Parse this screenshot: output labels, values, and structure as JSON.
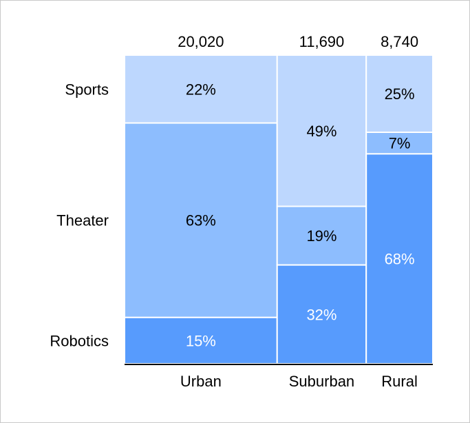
{
  "chart_data": {
    "type": "mekko",
    "title": "",
    "categories": [
      "Urban",
      "Suburban",
      "Rural"
    ],
    "totals": [
      20020,
      11690,
      8740
    ],
    "total_labels": [
      "20,020",
      "11,690",
      "8,740"
    ],
    "series": [
      {
        "name": "Sports",
        "values": [
          22,
          49,
          25
        ],
        "color": "#bdd7fe"
      },
      {
        "name": "Theater",
        "values": [
          63,
          19,
          7
        ],
        "color": "#8dbdfe"
      },
      {
        "name": "Robotics",
        "values": [
          15,
          32,
          68
        ],
        "color": "#579bfd"
      }
    ],
    "label_colors": {
      "Sports": "#000000",
      "Theater": "#000000",
      "Robotics": "#ffffff"
    },
    "value_suffix": "%",
    "xlabel": "",
    "ylabel": ""
  }
}
